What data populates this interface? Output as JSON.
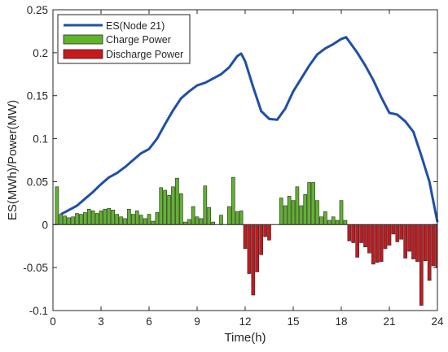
{
  "chart_data": {
    "type": "bar",
    "title": "",
    "xlabel": "Time(h)",
    "ylabel": "ES(MWh)/Power(MW)",
    "xlim": [
      0,
      24
    ],
    "ylim": [
      -0.1,
      0.25
    ],
    "xticks": [
      0,
      3,
      6,
      9,
      12,
      15,
      18,
      21,
      24
    ],
    "xtick_labels": [
      "0",
      "3",
      "6",
      "9",
      "12",
      "15",
      "18",
      "21",
      "24"
    ],
    "yticks": [
      -0.1,
      -0.05,
      0,
      0.05,
      0.1,
      0.15,
      0.2,
      0.25
    ],
    "ytick_labels": [
      "-0.1",
      "-0.05",
      "0",
      "0.05",
      "0.1",
      "0.15",
      "0.2",
      "0.25"
    ],
    "grid": false,
    "legend_position": "top-left",
    "series": [
      {
        "name": "ES(Node 21)",
        "kind": "line",
        "color": "#1f4fa8",
        "x": [
          0.5,
          1.0,
          1.5,
          2.0,
          2.5,
          3.0,
          3.5,
          4.0,
          4.5,
          5.0,
          5.5,
          6.0,
          6.5,
          7.0,
          7.5,
          8.0,
          8.5,
          9.0,
          9.5,
          10.0,
          10.5,
          11.0,
          11.5,
          11.75,
          12.0,
          12.5,
          13.0,
          13.5,
          14.0,
          14.5,
          15.0,
          15.5,
          16.0,
          16.5,
          17.0,
          17.5,
          18.0,
          18.3,
          18.5,
          19.0,
          19.5,
          20.0,
          20.5,
          21.0,
          21.5,
          22.0,
          22.5,
          23.0,
          23.5,
          24.0
        ],
        "values": [
          0.012,
          0.017,
          0.022,
          0.03,
          0.038,
          0.047,
          0.055,
          0.06,
          0.067,
          0.075,
          0.083,
          0.088,
          0.1,
          0.117,
          0.133,
          0.147,
          0.155,
          0.162,
          0.165,
          0.17,
          0.175,
          0.183,
          0.196,
          0.199,
          0.19,
          0.16,
          0.132,
          0.123,
          0.122,
          0.135,
          0.155,
          0.17,
          0.185,
          0.198,
          0.205,
          0.21,
          0.216,
          0.218,
          0.213,
          0.2,
          0.185,
          0.168,
          0.148,
          0.13,
          0.128,
          0.12,
          0.108,
          0.08,
          0.05,
          0.003
        ]
      },
      {
        "name": "Charge Power",
        "kind": "bar",
        "color": "#5fb52a",
        "x": [
          0.25,
          0.5,
          0.75,
          1.0,
          1.25,
          1.5,
          1.75,
          2.0,
          2.25,
          2.5,
          2.75,
          3.0,
          3.25,
          3.5,
          3.75,
          4.0,
          4.25,
          4.5,
          4.75,
          5.0,
          5.25,
          5.5,
          5.75,
          6.0,
          6.25,
          6.5,
          6.75,
          7.0,
          7.25,
          7.5,
          7.75,
          8.0,
          8.25,
          8.5,
          8.75,
          9.0,
          9.25,
          9.5,
          9.75,
          10.0,
          10.5,
          11.0,
          11.25,
          11.5,
          11.75,
          14.25,
          14.5,
          14.75,
          15.0,
          15.25,
          15.5,
          15.75,
          16.0,
          16.25,
          16.5,
          16.75,
          17.0,
          17.25,
          17.5,
          17.75,
          18.0,
          18.25
        ],
        "values": [
          0.044,
          0.012,
          0.01,
          0.008,
          0.009,
          0.013,
          0.012,
          0.014,
          0.018,
          0.016,
          0.013,
          0.016,
          0.018,
          0.019,
          0.017,
          0.012,
          0.009,
          0.007,
          0.018,
          0.012,
          0.016,
          0.011,
          0.007,
          0.012,
          0.004,
          0.014,
          0.043,
          0.04,
          0.034,
          0.044,
          0.054,
          0.036,
          0.003,
          0.006,
          0.021,
          0.009,
          0.007,
          0.045,
          0.02,
          0.003,
          0.011,
          0.021,
          0.055,
          0.015,
          0.016,
          0.031,
          0.022,
          0.033,
          0.028,
          0.044,
          0.022,
          0.035,
          0.049,
          0.049,
          0.028,
          0.009,
          0.015,
          0.005,
          0.009,
          0.005,
          0.028,
          0.005
        ]
      },
      {
        "name": "Discharge Power",
        "kind": "bar",
        "color": "#c8191d",
        "x": [
          12.0,
          12.25,
          12.5,
          12.75,
          13.0,
          13.25,
          13.5,
          18.5,
          18.75,
          19.0,
          19.25,
          19.5,
          19.75,
          20.0,
          20.25,
          20.5,
          20.75,
          21.0,
          21.25,
          21.5,
          21.75,
          22.0,
          22.25,
          22.5,
          22.75,
          23.0,
          23.25,
          23.5,
          23.75,
          24.0
        ],
        "values": [
          -0.028,
          -0.057,
          -0.082,
          -0.055,
          -0.035,
          -0.014,
          -0.018,
          -0.019,
          -0.021,
          -0.038,
          -0.021,
          -0.026,
          -0.033,
          -0.046,
          -0.044,
          -0.043,
          -0.028,
          -0.024,
          -0.011,
          -0.02,
          -0.017,
          -0.039,
          -0.031,
          -0.04,
          -0.043,
          -0.094,
          -0.042,
          -0.065,
          -0.048,
          -0.05
        ]
      }
    ]
  }
}
